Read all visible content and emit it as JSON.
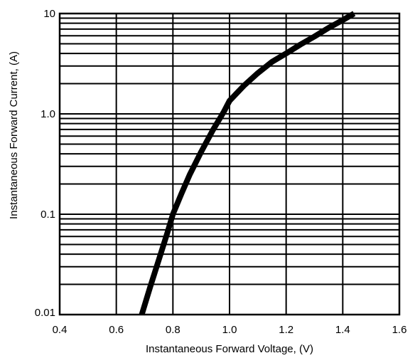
{
  "chart_data": {
    "type": "line",
    "xlabel": "Instantaneous Forward Voltage, (V)",
    "ylabel": "Instantaneous Forward Current, (A)",
    "xlim": [
      0.4,
      1.6
    ],
    "ylim": [
      0.01,
      10
    ],
    "y_scale": "log",
    "grid": true,
    "x_ticks": [
      0.4,
      0.6,
      0.8,
      1.0,
      1.2,
      1.4,
      1.6
    ],
    "x_tick_labels": [
      "0.4",
      "0.6",
      "0.8",
      "1.0",
      "1.2",
      "1.4",
      "1.6"
    ],
    "y_ticks": [
      0.01,
      0.1,
      1.0,
      10
    ],
    "y_tick_labels": [
      "0.01",
      "0.1",
      "1.0",
      "10"
    ],
    "series": [
      {
        "x": [
          0.69,
          0.72,
          0.75,
          0.78,
          0.8,
          0.83,
          0.86,
          0.9,
          0.94,
          0.98,
          1.0,
          1.05,
          1.1,
          1.15,
          1.2,
          1.25,
          1.3,
          1.35,
          1.4,
          1.44
        ],
        "y": [
          0.01,
          0.019,
          0.035,
          0.065,
          0.1,
          0.16,
          0.25,
          0.42,
          0.68,
          1.05,
          1.35,
          1.9,
          2.55,
          3.3,
          4.0,
          4.9,
          5.9,
          7.2,
          8.6,
          10.0
        ]
      }
    ]
  }
}
